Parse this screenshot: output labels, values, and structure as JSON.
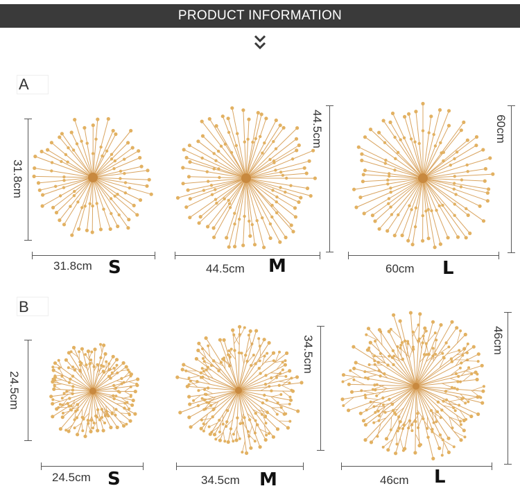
{
  "header": {
    "title": "PRODUCT INFORMATION"
  },
  "colors": {
    "gold": "#d9a460",
    "bead": "#e2b162",
    "header_bg": "#3a3a3a"
  },
  "groups": [
    {
      "letter": "A",
      "items": [
        {
          "size": "S",
          "width": "31.8cm",
          "height": "31.8cm"
        },
        {
          "size": "M",
          "width": "44.5cm",
          "height": "44.5cm"
        },
        {
          "size": "L",
          "width": "60cm",
          "height": "60cm"
        }
      ]
    },
    {
      "letter": "B",
      "items": [
        {
          "size": "S",
          "width": "24.5cm",
          "height": "24.5cm"
        },
        {
          "size": "M",
          "width": "34.5cm",
          "height": "34.5cm"
        },
        {
          "size": "L",
          "width": "46cm",
          "height": "46cm"
        }
      ]
    }
  ]
}
